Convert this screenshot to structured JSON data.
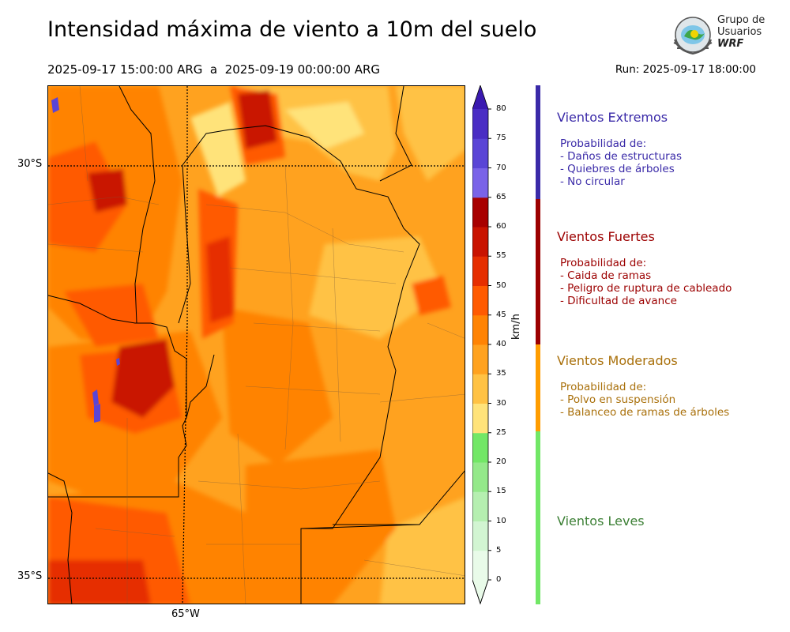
{
  "title": "Intensidad máxima de viento a 10m del suelo",
  "period": "2025-09-17 15:00:00 ARG  a  2025-09-19 00:00:00 ARG",
  "run": "Run: 2025-09-17 18:00:00",
  "logo": {
    "line1": "Grupo de",
    "line2": "Usuarios",
    "line3": "WRF"
  },
  "map": {
    "lat_labels": [
      "30°S",
      "35°S"
    ],
    "lon_label": "65°W"
  },
  "colorbar": {
    "unit": "km/h",
    "ticks": [
      "0",
      "5",
      "10",
      "15",
      "20",
      "25",
      "30",
      "35",
      "40",
      "45",
      "50",
      "55",
      "60",
      "65",
      "70",
      "75",
      "80"
    ],
    "colors": [
      "#e9fbe9",
      "#d2f5d2",
      "#b5efb0",
      "#94e98a",
      "#72e766",
      "#ffe37a",
      "#ffc244",
      "#ffa21f",
      "#ff8303",
      "#ff5a00",
      "#e62e00",
      "#c91300",
      "#a80000",
      "#7a63e8",
      "#5a45d6",
      "#4a2dc4",
      "#3a1ab0"
    ]
  },
  "categories": [
    {
      "title": "Vientos Extremos",
      "color": "#3a2aa8",
      "lines": [
        "Probabilidad de:",
        "- Daños de estructuras",
        "- Quiebres de árboles",
        "- No circular"
      ]
    },
    {
      "title": "Vientos Fuertes",
      "color": "#9c0000",
      "lines": [
        "Probabilidad de:",
        "- Caida de ramas",
        "- Peligro de ruptura de cableado",
        "- Dificultad de avance"
      ]
    },
    {
      "title": "Vientos Moderados",
      "color": "#a9700b",
      "lines": [
        "Probabilidad de:",
        "- Polvo en suspensión",
        "- Balanceo de ramas de árboles"
      ]
    },
    {
      "title": "Vientos Leves",
      "color": "#3b7f34",
      "lines": []
    }
  ]
}
